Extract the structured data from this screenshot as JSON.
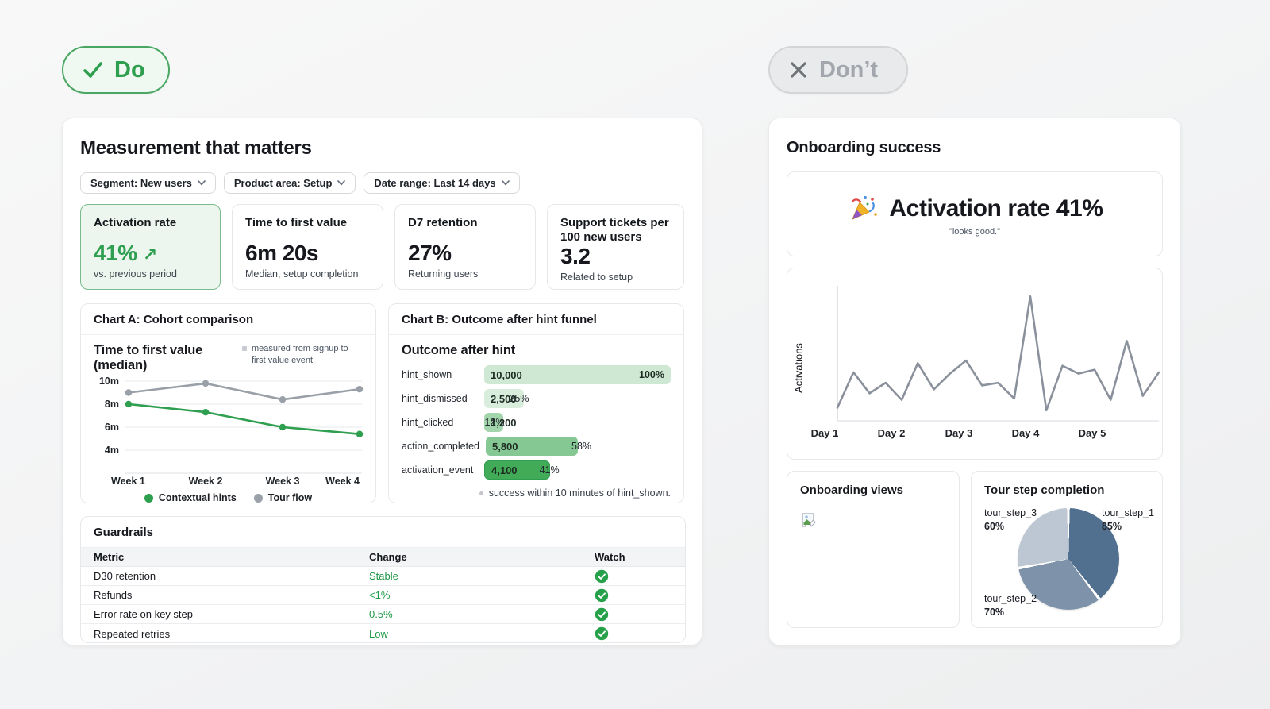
{
  "badges": {
    "do_label": "Do",
    "dont_label": "Don’t"
  },
  "colors": {
    "accent_green": "#2e9e4f",
    "light_green_bg": "#ecf6ee",
    "green_border": "#4aa763",
    "gray_line": "#9aa0a8",
    "check_badge": "#27a04a",
    "pie_dark": "#51708f",
    "pie_medium": "#7e93aa",
    "pie_light": "#bdc7d3"
  },
  "do_panel": {
    "title": "Measurement that matters",
    "filters": [
      {
        "label": "Segment: New users"
      },
      {
        "label": "Product area: Setup"
      },
      {
        "label": "Date range: Last 14 days"
      }
    ],
    "kpis": [
      {
        "label": "Activation rate",
        "value": "41%",
        "trend": "↗",
        "sub": "vs. previous period"
      },
      {
        "label": "Time to first value",
        "value": "6m 20s",
        "sub": "Median, setup completion"
      },
      {
        "label": "D7 retention",
        "value": "27%",
        "sub": "Returning users"
      },
      {
        "label": "Support tickets per 100 new users",
        "value": "3.2",
        "sub": "Related to setup"
      }
    ],
    "chart_a_header": "Chart A: Cohort comparison",
    "chart_a_note": "measured from signup to first value event.",
    "chart_b_header": "Chart B: Outcome after hint funnel",
    "chart_b_footnote": "success within 10 minutes of hint_shown.",
    "guardrails": {
      "title": "Guardrails",
      "columns": [
        "Metric",
        "Change",
        "Watch"
      ],
      "rows": [
        {
          "metric": "D30 retention",
          "change": "Stable",
          "watch": "ok"
        },
        {
          "metric": "Refunds",
          "change": "<1%",
          "watch": "ok"
        },
        {
          "metric": "Error rate on key step",
          "change": "0.5%",
          "watch": "ok"
        },
        {
          "metric": "Repeated retries",
          "change": "Low",
          "watch": "ok"
        }
      ]
    }
  },
  "dont_panel": {
    "title": "Onboarding success",
    "banner": {
      "headline": "Activation rate 41%",
      "caption": "\"looks good.\""
    },
    "views_card": {
      "title": "Onboarding views"
    },
    "pie_card": {
      "title": "Tour step completion"
    }
  },
  "chart_data": [
    {
      "id": "cohort_comparison",
      "type": "line",
      "title": "Time to first value (median)",
      "categories": [
        "Week 1",
        "Week 2",
        "Week 3",
        "Week 4"
      ],
      "yticks": [
        10,
        8,
        6,
        4
      ],
      "ytick_labels": [
        "10m",
        "8m",
        "6m",
        "4m"
      ],
      "ylim": [
        2,
        10
      ],
      "grid": true,
      "legend_position": "bottom",
      "series": [
        {
          "name": "Contextual hints",
          "color": "#2e9e4f",
          "values": [
            8.0,
            7.3,
            6.0,
            5.4
          ]
        },
        {
          "name": "Tour flow",
          "color": "#9aa0a8",
          "values": [
            9.0,
            9.8,
            8.4,
            9.3
          ]
        }
      ]
    },
    {
      "id": "outcome_after_hint_funnel",
      "type": "bar",
      "orientation": "horizontal",
      "title": "Outcome after hint",
      "categories": [
        "hint_shown",
        "hint_dismissed",
        "hint_clicked",
        "action_completed",
        "activation_event"
      ],
      "values": [
        10000,
        2500,
        1200,
        5800,
        4100
      ],
      "value_labels": [
        "10,000",
        "2,500",
        "1,200",
        "5,800",
        "4,100"
      ],
      "percents": [
        "100%",
        "25%",
        "12%",
        "58%",
        "41%"
      ],
      "percent_values": [
        100,
        25,
        12,
        58,
        41
      ],
      "bar_colors": [
        "#cfe8d3",
        "#d9eddc",
        "#a3d5ac",
        "#85c893",
        "#41ab57"
      ]
    },
    {
      "id": "activations_daily",
      "type": "line",
      "ylabel": "Activations",
      "x_labels": [
        "Day 1",
        "Day 2",
        "Day 3",
        "Day 4",
        "Day 5"
      ],
      "color": "#8b919c",
      "values": [
        10,
        37,
        21,
        29,
        16,
        44,
        24,
        36,
        46,
        27,
        29,
        17,
        95,
        8,
        42,
        36,
        39,
        16,
        61,
        19,
        37
      ]
    },
    {
      "id": "tour_step_completion",
      "type": "pie",
      "title": "Tour step completion",
      "labels": [
        "tour_step_1",
        "tour_step_2",
        "tour_step_3"
      ],
      "values": [
        85,
        70,
        60
      ],
      "percent_labels": [
        "85%",
        "70%",
        "60%"
      ],
      "colors": [
        "#51708f",
        "#7e93aa",
        "#bdc7d3"
      ]
    }
  ]
}
